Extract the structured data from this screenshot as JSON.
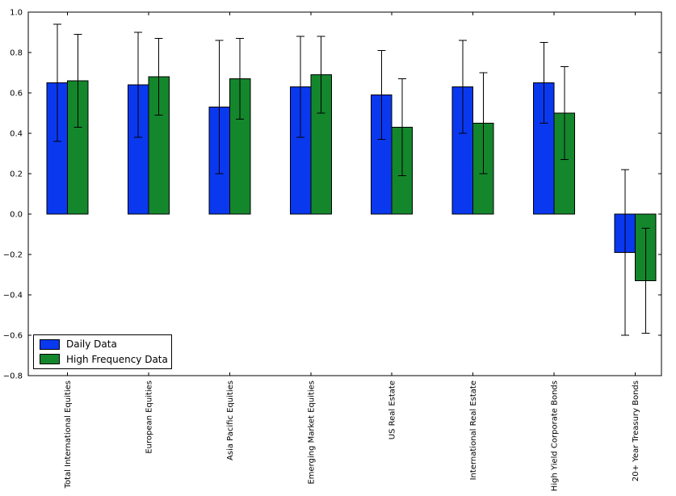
{
  "chart_data": {
    "type": "bar",
    "title": "",
    "xlabel": "",
    "ylabel": "",
    "categories": [
      "Total International Equities",
      "European Equities",
      "Asia Pacific Equities",
      "Emerging Market Equities",
      "US Real Estate",
      "International Real Estate",
      "High Yield Corporate Bonds",
      "20+ Year Treasury Bonds"
    ],
    "series": [
      {
        "name": "Daily Data",
        "color": "#0A38EF",
        "values": [
          0.65,
          0.64,
          0.53,
          0.63,
          0.59,
          0.63,
          0.65,
          -0.19
        ],
        "error_low": [
          0.36,
          0.38,
          0.2,
          0.38,
          0.37,
          0.4,
          0.45,
          -0.6
        ],
        "error_high": [
          0.94,
          0.9,
          0.86,
          0.88,
          0.81,
          0.86,
          0.85,
          0.22
        ]
      },
      {
        "name": "High Frequency Data",
        "color": "#14862C",
        "values": [
          0.66,
          0.68,
          0.67,
          0.69,
          0.43,
          0.45,
          0.5,
          -0.33
        ],
        "error_low": [
          0.43,
          0.49,
          0.47,
          0.5,
          0.19,
          0.2,
          0.27,
          -0.59
        ],
        "error_high": [
          0.89,
          0.87,
          0.87,
          0.88,
          0.67,
          0.7,
          0.73,
          -0.07
        ]
      }
    ],
    "ylim": [
      -0.8,
      1.0
    ],
    "yticks": [
      1.0,
      0.8,
      0.6,
      0.4,
      0.2,
      0.0,
      -0.2,
      -0.4,
      -0.6,
      -0.8
    ],
    "ytick_labels": [
      "1.0",
      "0.8",
      "0.6",
      "0.4",
      "0.2",
      "0.0",
      "−0.2",
      "−0.4",
      "−0.6",
      "−0.8"
    ],
    "grid": false,
    "legend": {
      "position": "lower-left",
      "items": [
        "Daily Data",
        "High Frequency Data"
      ]
    },
    "bar_edge_color": "#000000",
    "error_bar_color": "#000000",
    "axis_color": "#000000",
    "background": "#ffffff"
  }
}
